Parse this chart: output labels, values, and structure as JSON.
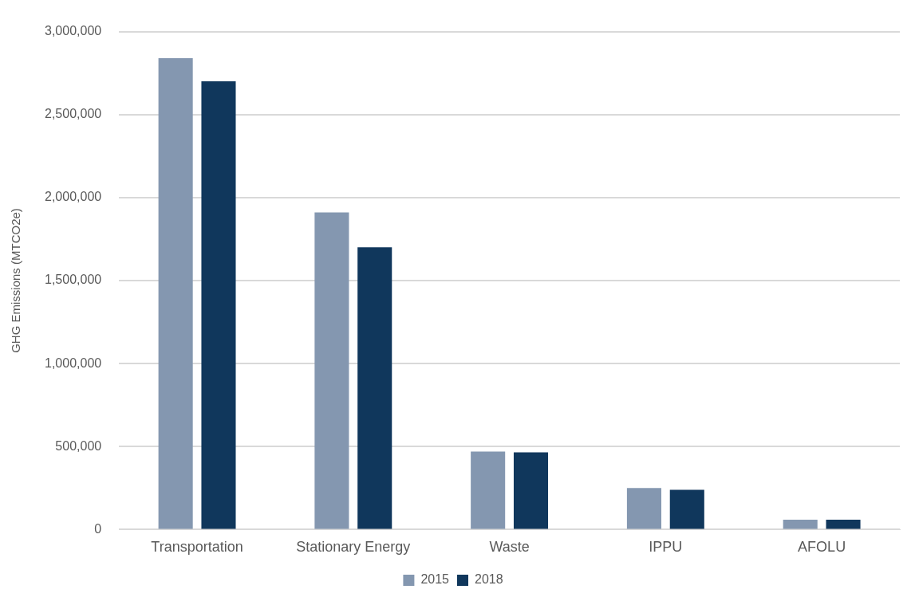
{
  "chart_data": {
    "type": "bar",
    "ylabel": "GHG Emissions (MTCO2e)",
    "categories": [
      "Transportation",
      "Stationary Energy",
      "Waste",
      "IPPU",
      "AFOLU"
    ],
    "series": [
      {
        "name": "2015",
        "color": "#8497b0",
        "values": [
          2840000,
          1910000,
          470000,
          250000,
          60000
        ]
      },
      {
        "name": "2018",
        "color": "#10375c",
        "values": [
          2700000,
          1700000,
          465000,
          240000,
          60000
        ]
      }
    ],
    "ylim": [
      0,
      3000000
    ],
    "yticks": [
      {
        "value": 0,
        "label": "0"
      },
      {
        "value": 500000,
        "label": "500,000"
      },
      {
        "value": 1000000,
        "label": "1,000,000"
      },
      {
        "value": 1500000,
        "label": "1,500,000"
      },
      {
        "value": 2000000,
        "label": "2,000,000"
      },
      {
        "value": 2500000,
        "label": "2,500,000"
      },
      {
        "value": 3000000,
        "label": "3,000,000"
      }
    ],
    "grid": "y",
    "legend": "bottom"
  }
}
